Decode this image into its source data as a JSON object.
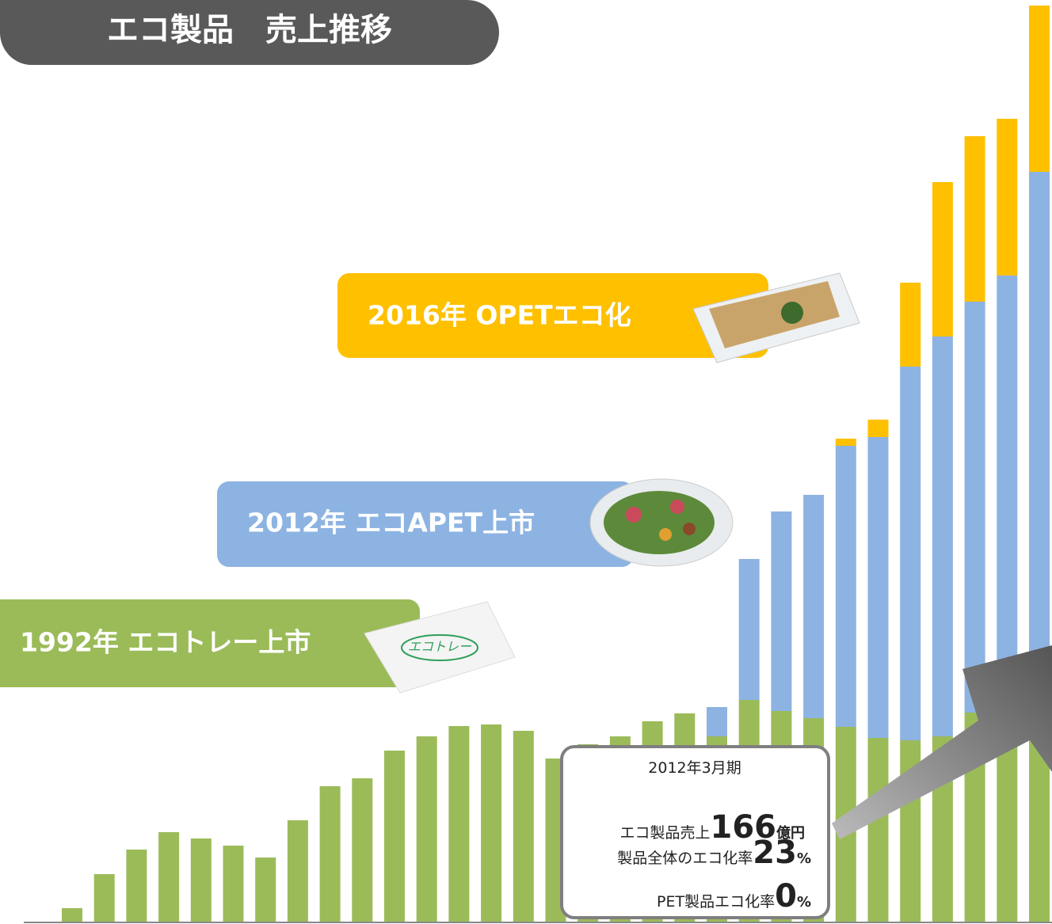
{
  "chart_data": {
    "type": "stacked-bar",
    "title": "エコ製品　売上推移",
    "annotations": {
      "banner_1992": "1992年 エコトレー上市",
      "banner_2012": "2012年 エコAPET上市",
      "banner_2016": "2016年 OPETエコ化",
      "tray_logo": "エコトレー",
      "callout_period": "2012年3月期",
      "callout_sales_label": "エコ製品売上",
      "callout_sales_value": "166",
      "callout_sales_unit": "億円",
      "callout_rate_label": "製品全体のエコ化率",
      "callout_rate_value": "23",
      "callout_rate_unit": "%",
      "callout_pet_label": "PET製品エコ化率",
      "callout_pet_value": "0",
      "callout_pet_unit": "%"
    },
    "ylim": [
      0,
      1158
    ],
    "series": [
      {
        "color": "#9bbb59",
        "values": [
          18,
          61,
          92,
          114,
          106,
          97,
          82,
          129,
          172,
          182,
          217,
          235,
          248,
          250,
          242,
          207,
          225,
          235,
          254,
          264,
          235,
          281,
          267,
          258,
          247,
          233,
          230,
          235,
          265,
          305,
          343
        ]
      },
      {
        "color": "#8db3e2",
        "values": [
          0,
          0,
          0,
          0,
          0,
          0,
          0,
          0,
          0,
          0,
          0,
          0,
          0,
          0,
          0,
          0,
          0,
          0,
          0,
          0,
          37,
          178,
          252,
          282,
          355,
          380,
          472,
          505,
          519,
          512,
          605
        ]
      },
      {
        "color": "#ffc000",
        "values": [
          0,
          0,
          0,
          0,
          0,
          0,
          0,
          0,
          0,
          0,
          0,
          0,
          0,
          0,
          0,
          0,
          0,
          0,
          0,
          0,
          0,
          0,
          0,
          0,
          9,
          22,
          106,
          195,
          209,
          198,
          210
        ]
      }
    ]
  }
}
